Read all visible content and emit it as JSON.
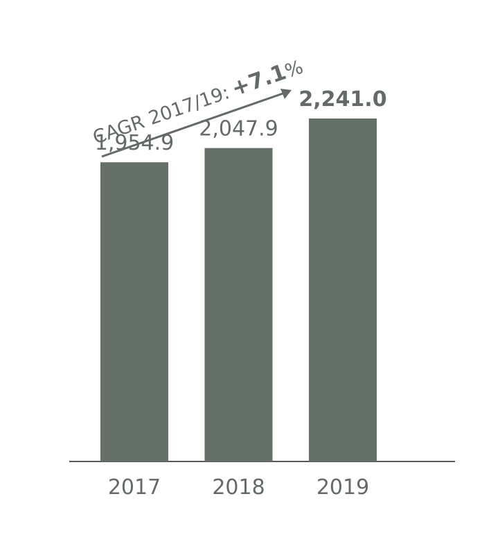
{
  "chart_data": {
    "type": "bar",
    "categories": [
      "2017",
      "2018",
      "2019"
    ],
    "values": [
      1954.9,
      2047.9,
      2241.0
    ],
    "value_labels": [
      "1,954.9",
      "2,047.9",
      "2,241.0"
    ],
    "color": "#647068",
    "annotation": [
      "CAGR 2017/19:",
      "+7.1",
      "%"
    ]
  }
}
